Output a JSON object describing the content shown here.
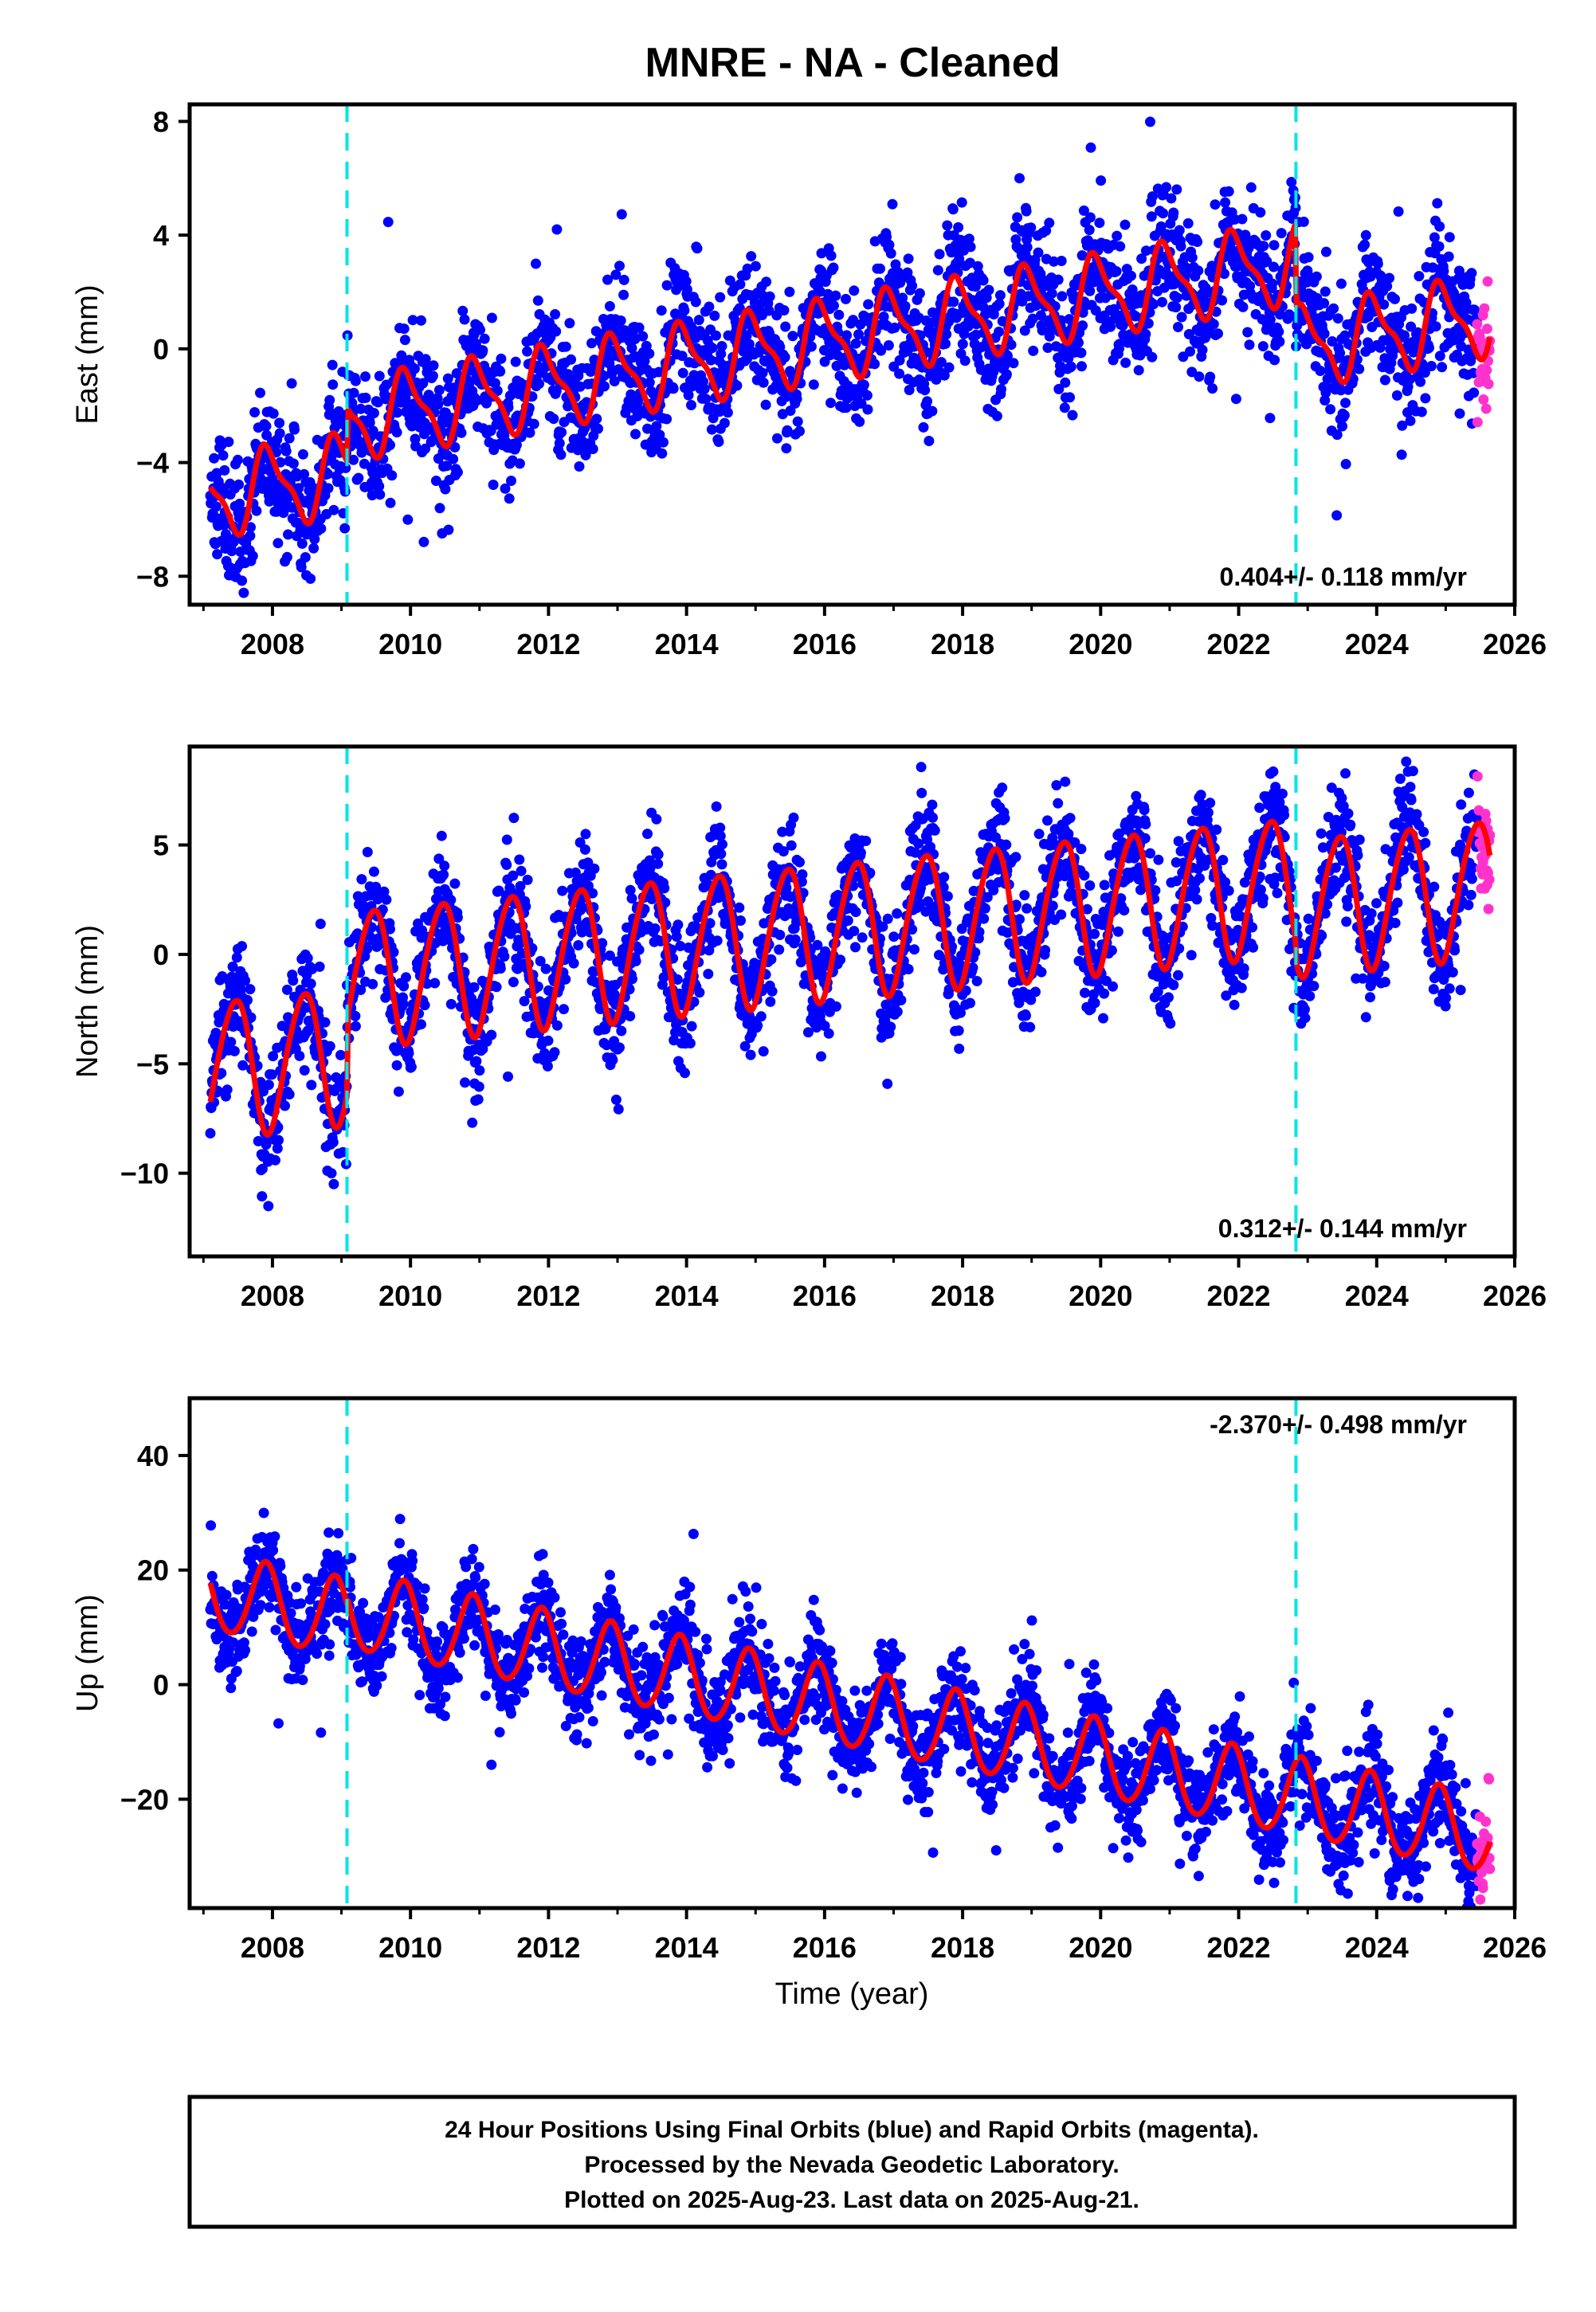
{
  "page_title": "MNRE  - NA - Cleaned",
  "x_axis_label": "Time (year)",
  "caption": {
    "line1": "24 Hour Positions Using Final Orbits (blue) and Rapid Orbits (magenta).",
    "line2": "Processed by the Nevada Geodetic Laboratory.",
    "line3": "Plotted on 2025-Aug-23. Last data on 2025-Aug-21."
  },
  "colors": {
    "final_orbits": "#0000ff",
    "rapid_orbits": "#ff33cc",
    "model_fit": "#ff0000",
    "offset_lines": "#00e5e5",
    "frame": "#000000"
  },
  "chart_data": [
    {
      "type": "scatter",
      "ylabel": "East (mm)",
      "xlim": [
        2006.8,
        2026.0
      ],
      "ylim": [
        -9.0,
        8.6
      ],
      "xticks": [
        2008,
        2010,
        2012,
        2014,
        2016,
        2018,
        2020,
        2022,
        2024,
        2026
      ],
      "yticks": [
        -8,
        -4,
        0,
        4,
        8
      ],
      "yticklabels": [
        "−8",
        "−4",
        "0",
        "4",
        "8"
      ],
      "rate_label": "0.404+/- 0.118 mm/yr",
      "rate_position": "bottom-right",
      "data_start": 2007.1,
      "data_end": 2025.64,
      "rapid_start": 2025.45,
      "vertical_lines": [
        2009.08,
        2022.83
      ],
      "model": {
        "mean_at_start": -5.2,
        "trend_per_yr": 0.404,
        "offsets": [
          {
            "x": 2009.08,
            "dy": 1.9
          },
          {
            "x": 2022.83,
            "dy": -3.0
          }
        ],
        "annual_amp": 1.3,
        "annual_phase": 0.7,
        "semiannual_amp": 0.45,
        "semiannual_phase": 0.2
      },
      "scatter_sigma": 1.1,
      "n_points": 2800,
      "seed": 11
    },
    {
      "type": "scatter",
      "ylabel": "North (mm)",
      "xlim": [
        2006.8,
        2026.0
      ],
      "ylim": [
        -13.8,
        9.5
      ],
      "xticks": [
        2008,
        2010,
        2012,
        2014,
        2016,
        2018,
        2020,
        2022,
        2024,
        2026
      ],
      "yticks": [
        -10,
        -5,
        0,
        5
      ],
      "yticklabels": [
        "−10",
        "−5",
        "0",
        "5"
      ],
      "rate_label": "0.312+/- 0.144 mm/yr",
      "rate_position": "bottom-right",
      "data_start": 2007.1,
      "data_end": 2025.64,
      "rapid_start": 2025.45,
      "vertical_lines": [
        2009.08,
        2022.83
      ],
      "model": {
        "mean_at_start": -5.2,
        "trend_per_yr": 0.312,
        "offsets": [
          {
            "x": 2009.08,
            "dy": 3.5
          },
          {
            "x": 2022.83,
            "dy": -1.0
          }
        ],
        "annual_amp": 3.1,
        "annual_phase": 0.2,
        "semiannual_amp": 0.3,
        "semiannual_phase": 0.5
      },
      "scatter_sigma": 1.3,
      "n_points": 2800,
      "seed": 23
    },
    {
      "type": "scatter",
      "ylabel": "Up (mm)",
      "xlim": [
        2006.8,
        2026.0
      ],
      "ylim": [
        -39.0,
        50.0
      ],
      "xticks": [
        2008,
        2010,
        2012,
        2014,
        2016,
        2018,
        2020,
        2022,
        2024,
        2026
      ],
      "yticks": [
        -20,
        0,
        20,
        40
      ],
      "yticklabels": [
        "−20",
        "0",
        "20",
        "40"
      ],
      "rate_label": "-2.370+/- 0.498 mm/yr",
      "rate_position": "top-right",
      "data_start": 2007.1,
      "data_end": 2025.64,
      "rapid_start": 2025.45,
      "vertical_lines": [
        2009.08,
        2022.83
      ],
      "model": {
        "mean_at_start": 16.0,
        "trend_per_yr": -2.37,
        "offsets": [
          {
            "x": 2009.08,
            "dy": 1.5
          },
          {
            "x": 2022.83,
            "dy": 0.0
          }
        ],
        "annual_amp": 6.8,
        "annual_phase": 0.65,
        "semiannual_amp": 0.6,
        "semiannual_phase": 0.3
      },
      "scatter_sigma": 4.2,
      "n_points": 2800,
      "seed": 37
    }
  ]
}
